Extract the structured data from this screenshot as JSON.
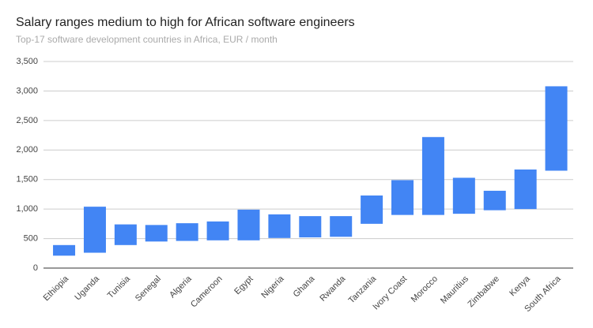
{
  "chart_data": {
    "type": "range-bar",
    "title": "Salary ranges medium to high for African software engineers",
    "subtitle": "Top-17 software development countries in Africa, EUR / month",
    "categories": [
      "Ethiopia",
      "Uganda",
      "Tunisia",
      "Senegal",
      "Algeria",
      "Cameroon",
      "Egypt",
      "Nigeria",
      "Ghana",
      "Rwanda",
      "Tanzania",
      "Ivory Coast",
      "Morocco",
      "Mauritius",
      "Zimbabwe",
      "Kenya",
      "South Africa"
    ],
    "low": [
      210,
      260,
      390,
      450,
      460,
      470,
      470,
      510,
      520,
      530,
      750,
      900,
      900,
      920,
      980,
      1000,
      1650
    ],
    "high": [
      390,
      1040,
      740,
      730,
      760,
      790,
      990,
      910,
      880,
      880,
      1230,
      1490,
      2220,
      1530,
      1310,
      1670,
      3080
    ],
    "color": "#4285f4",
    "ylim": [
      0,
      3500
    ],
    "yticks": [
      0,
      500,
      {
        "value": 1000,
        "label": "1,000"
      },
      {
        "value": 1500,
        "label": "1,500"
      },
      {
        "value": 2000,
        "label": "2,000"
      },
      {
        "value": 2500,
        "label": "2,500"
      },
      {
        "value": 3000,
        "label": "3,000"
      },
      {
        "value": 3500,
        "label": "3,500"
      }
    ],
    "grid": true
  }
}
